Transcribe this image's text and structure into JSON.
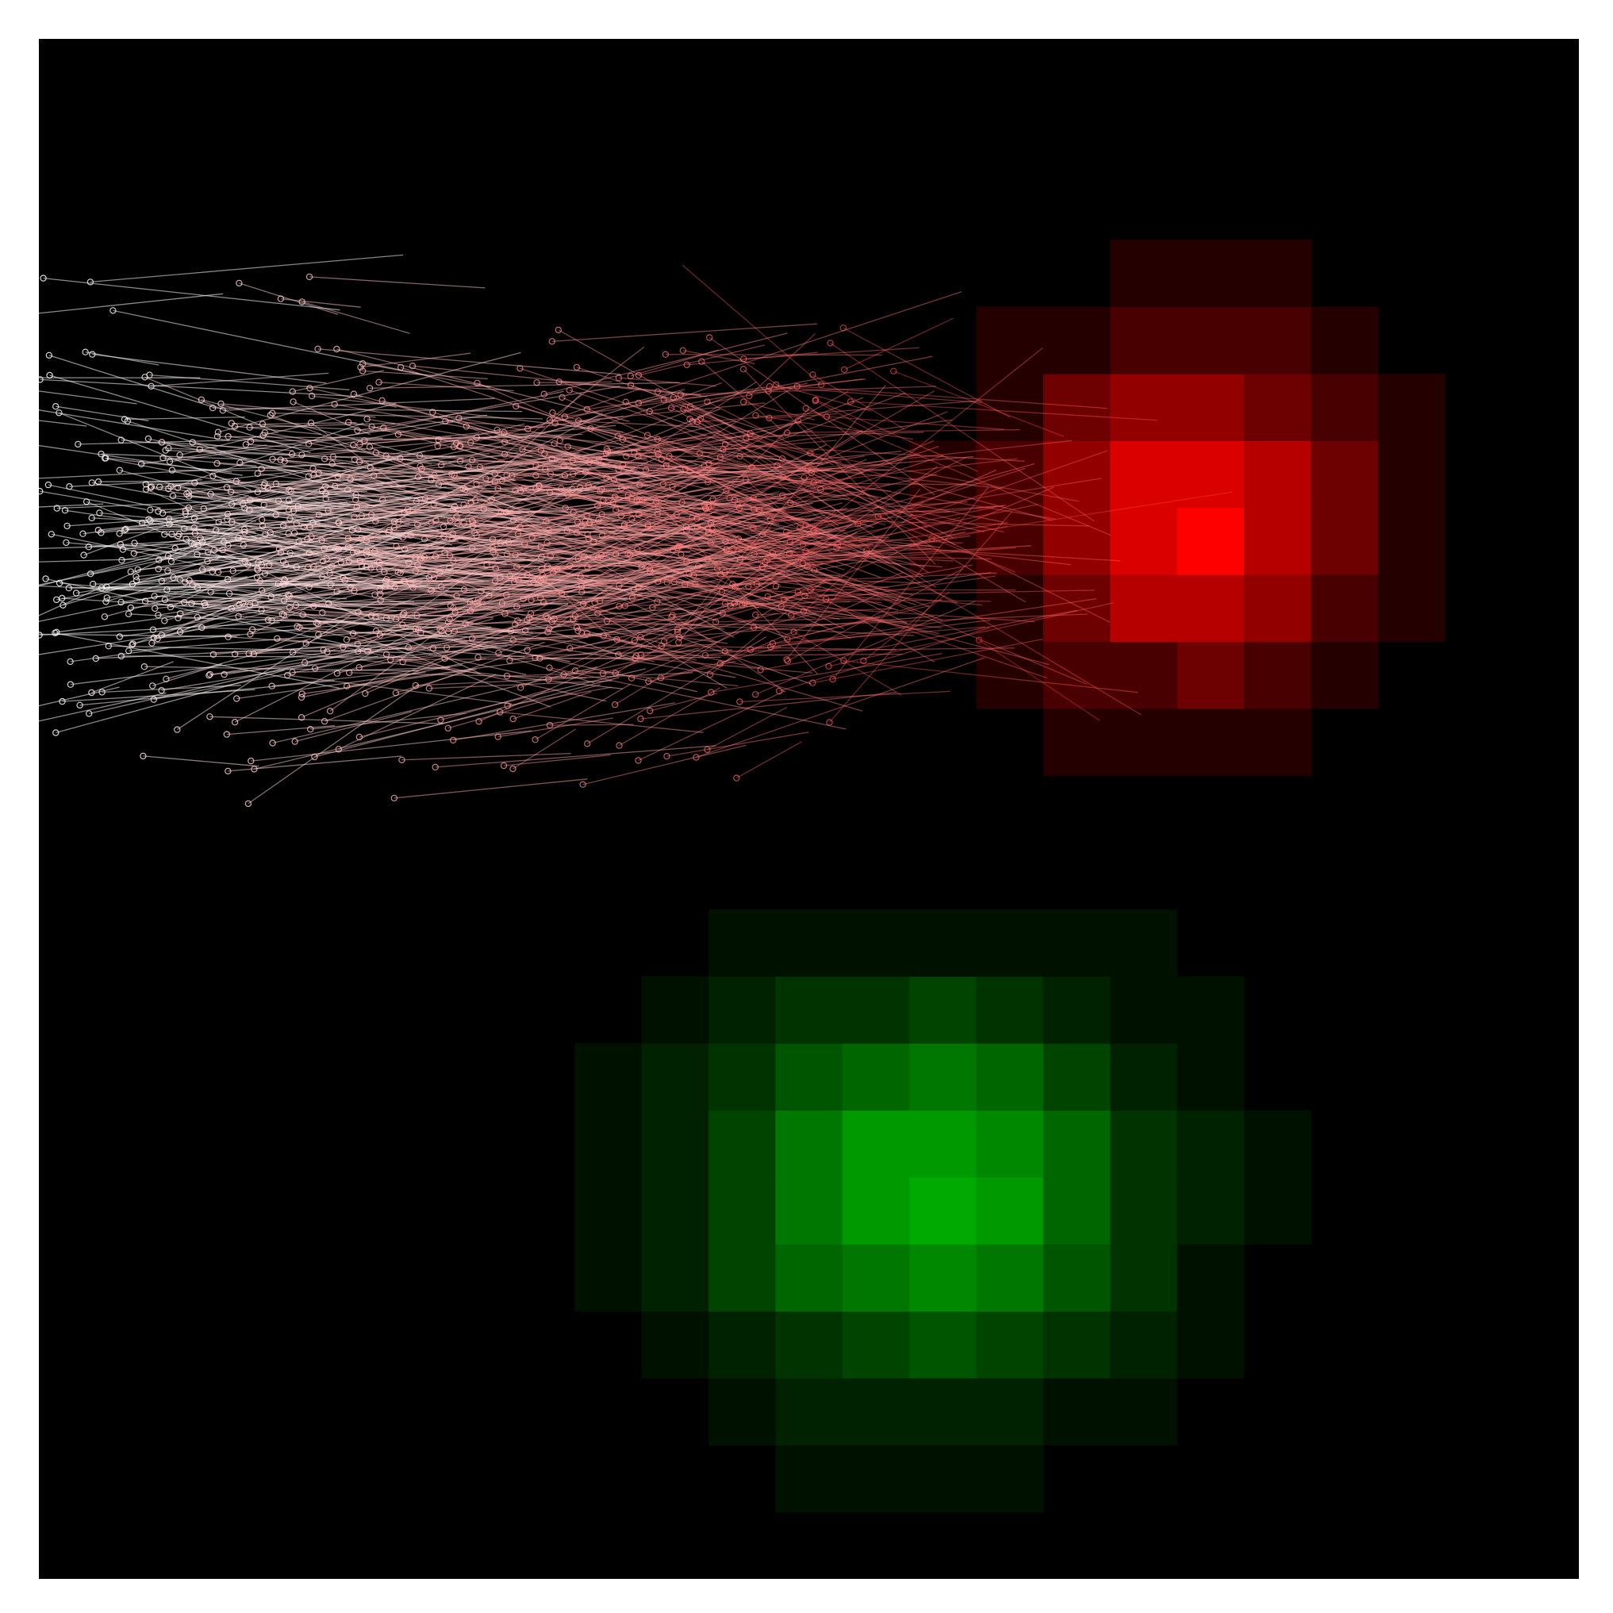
{
  "chart_data": {
    "type": "heatmap",
    "title": "",
    "xlabel": "",
    "ylabel": "",
    "grid": false,
    "legend": "none",
    "axes_visible": false,
    "xlim": [
      0,
      23
    ],
    "ylim": [
      0,
      23
    ],
    "background_color": "#000000",
    "heatmap_layers": [
      {
        "name": "",
        "color": "#ff0000",
        "grid_size": 23,
        "center": [
          17.2,
          15.9
        ],
        "sigma": [
          1.7,
          1.7
        ],
        "peak_intensity": 1.0,
        "levels": 7
      },
      {
        "name": "",
        "color": "#00aa00",
        "grid_size": 23,
        "center": [
          13.3,
          5.8
        ],
        "sigma": [
          2.2,
          1.9
        ],
        "peak_intensity": 1.0,
        "levels": 10
      }
    ],
    "trajectories": {
      "count": 1100,
      "marker": "open-circle",
      "start_color": "#ffffff",
      "end_color": "#ff0000",
      "start_region": {
        "center": [
          6.0,
          15.5
        ],
        "spread": [
          5.5,
          3.0
        ]
      },
      "drift_toward": [
        18.5,
        16.0
      ],
      "step_length": [
        1.0,
        5.0
      ]
    }
  }
}
